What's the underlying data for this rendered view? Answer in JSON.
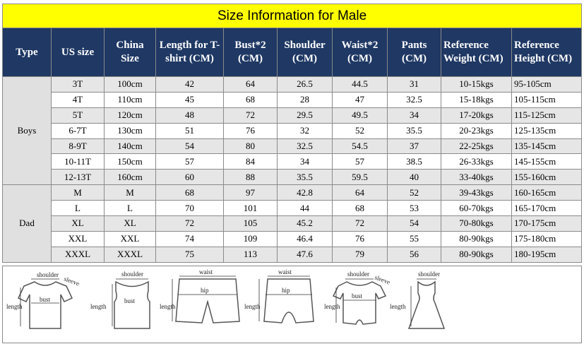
{
  "header": {
    "title": "Size Information for Male"
  },
  "table": {
    "columns": [
      "Type",
      "US size",
      "China Size",
      "Length for T-shirt (CM)",
      "Bust*2 (CM)",
      "Shoulder (CM)",
      "Waist*2 (CM)",
      "Pants (CM)",
      "Reference Weight (CM)",
      "Reference Height (CM)"
    ],
    "groups": [
      {
        "type": "Boys",
        "rows": [
          [
            "3T",
            "100cm",
            "42",
            "64",
            "26.5",
            "44.5",
            "31",
            "10-15kgs",
            "95-105cm"
          ],
          [
            "4T",
            "110cm",
            "45",
            "68",
            "28",
            "47",
            "32.5",
            "15-18kgs",
            "105-115cm"
          ],
          [
            "5T",
            "120cm",
            "48",
            "72",
            "29.5",
            "49.5",
            "34",
            "17-20kgs",
            "115-125cm"
          ],
          [
            "6-7T",
            "130cm",
            "51",
            "76",
            "32",
            "52",
            "35.5",
            "20-23kgs",
            "125-135cm"
          ],
          [
            "8-9T",
            "140cm",
            "54",
            "80",
            "32.5",
            "54.5",
            "37",
            "22-25kgs",
            "135-145cm"
          ],
          [
            "10-11T",
            "150cm",
            "57",
            "84",
            "34",
            "57",
            "38.5",
            "26-33kgs",
            "145-155cm"
          ],
          [
            "12-13T",
            "160cm",
            "60",
            "88",
            "35.5",
            "59.5",
            "40",
            "33-40kgs",
            "155-160cm"
          ]
        ]
      },
      {
        "type": "Dad",
        "rows": [
          [
            "M",
            "M",
            "68",
            "97",
            "42.8",
            "64",
            "52",
            "39-43kgs",
            "160-165cm"
          ],
          [
            "L",
            "L",
            "70",
            "101",
            "44",
            "68",
            "53",
            "60-70kgs",
            "165-170cm"
          ],
          [
            "XL",
            "XL",
            "72",
            "105",
            "45.2",
            "72",
            "54",
            "70-80kgs",
            "170-175cm"
          ],
          [
            "XXL",
            "XXL",
            "74",
            "109",
            "46.4",
            "76",
            "55",
            "80-90kgs",
            "175-180cm"
          ],
          [
            "XXXL",
            "XXXL",
            "75",
            "113",
            "47.6",
            "79",
            "56",
            "80-90kgs",
            "180-195cm"
          ]
        ]
      }
    ]
  },
  "diagrams": [
    {
      "labels": [
        "shoulder",
        "sleeve",
        "bust",
        "length"
      ]
    },
    {
      "labels": [
        "shoulder",
        "bust",
        "length"
      ]
    },
    {
      "labels": [
        "waist",
        "hip",
        "length"
      ]
    },
    {
      "labels": [
        "waist",
        "hip",
        "length"
      ]
    },
    {
      "labels": [
        "shoulder",
        "sleeve",
        "bust",
        "length"
      ]
    },
    {
      "labels": [
        "shoulder",
        "length"
      ]
    }
  ]
}
